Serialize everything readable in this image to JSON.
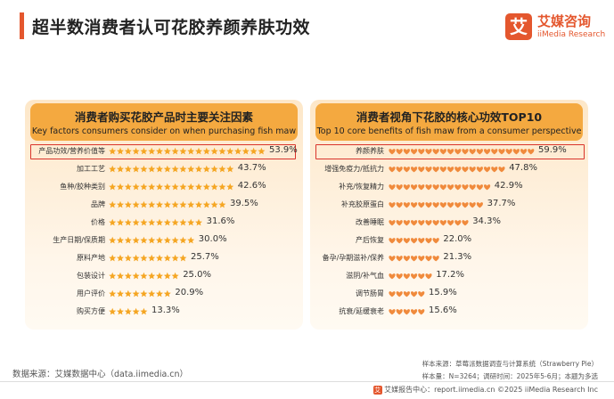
{
  "header": {
    "title": "超半数消费者认可花胶养颜养肤功效",
    "logo_mark": "艾",
    "logo_cn": "艾媒咨询",
    "logo_en": "iiMedia Research"
  },
  "chart_data": [
    {
      "type": "bar",
      "orientation": "horizontal",
      "title": "消费者购买花胶产品时主要关注因素",
      "subtitle": "Key factors consumers consider on when purchasing fish maw",
      "icon": "star-icon",
      "categories": [
        "产品功效/营养价值等",
        "加工工艺",
        "鱼种/胶种类别",
        "品牌",
        "价格",
        "生产日期/保质期",
        "原料产地",
        "包装设计",
        "用户评价",
        "购买方便"
      ],
      "values": [
        53.9,
        43.7,
        42.6,
        39.5,
        31.6,
        30.0,
        25.7,
        25.0,
        20.9,
        13.3
      ],
      "value_labels": [
        "53.9%",
        "43.7%",
        "42.6%",
        "39.5%",
        "31.6%",
        "30.0%",
        "25.7%",
        "25.0%",
        "20.9%",
        "13.3%"
      ],
      "unit": "%",
      "highlight_index": 0,
      "color": "#f5a623"
    },
    {
      "type": "bar",
      "orientation": "horizontal",
      "title": "消费者视角下花胶的核心功效TOP10",
      "subtitle": "Top 10 core benefits of fish maw from a consumer perspective",
      "icon": "heart-icon",
      "categories": [
        "养颜养肤",
        "增强免疫力/抵抗力",
        "补充/恢复精力",
        "补充胶原蛋白",
        "改善睡眠",
        "产后恢复",
        "备孕/孕期滋补/保养",
        "滋阴/补气血",
        "调节肠胃",
        "抗衰/延缓衰老"
      ],
      "values": [
        59.9,
        47.8,
        42.9,
        37.7,
        34.3,
        22.0,
        21.3,
        17.2,
        15.9,
        15.6
      ],
      "value_labels": [
        "59.9%",
        "47.8%",
        "42.9%",
        "37.7%",
        "34.3%",
        "22.0%",
        "21.3%",
        "17.2%",
        "15.9%",
        "15.6%"
      ],
      "unit": "%",
      "highlight_index": 0,
      "color": "#f08a3c"
    }
  ],
  "footer": {
    "source": "数据来源：艾媒数据中心（data.iimedia.cn）",
    "note1": "样本来源：草莓派数据调查与计算系统（Strawberry Pie）",
    "note2": "样本量：N=3264；调研时间：2025年5-6月；本题为多选",
    "bottom": "艾媒报告中心：report.iimedia.cn    ©2025  iiMedia Research  Inc",
    "bottom_mark": "艾"
  }
}
